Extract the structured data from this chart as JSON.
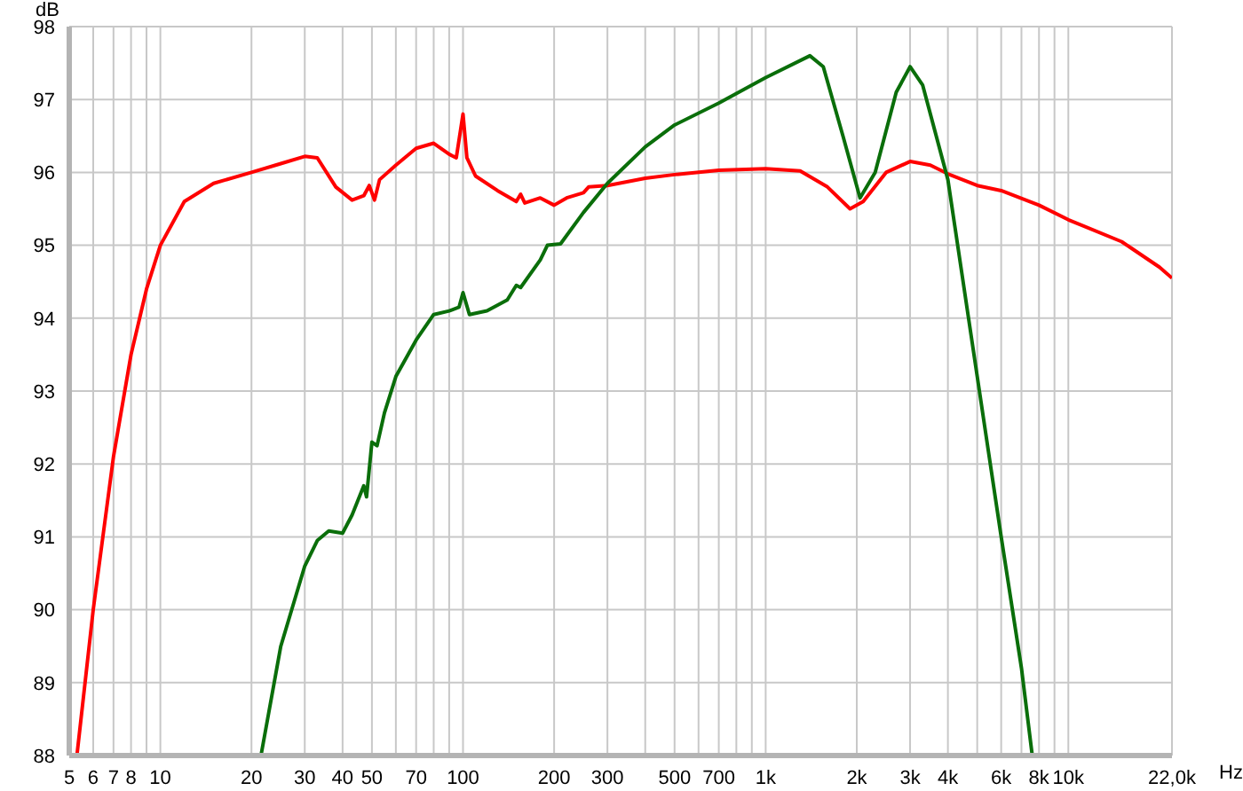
{
  "chart_data": {
    "type": "line",
    "xlabel": "Hz",
    "ylabel": "dB",
    "log": "x",
    "grid": true,
    "marker": "none",
    "xlim": [
      5,
      22000
    ],
    "ylim": [
      88,
      98
    ],
    "xticks": [
      5,
      6,
      7,
      8,
      {
        "value": 9,
        "label": null
      },
      10,
      20,
      30,
      40,
      50,
      {
        "value": 60,
        "label": null
      },
      70,
      {
        "value": 80,
        "label": null
      },
      {
        "value": 90,
        "label": null
      },
      100,
      200,
      300,
      {
        "value": 400,
        "label": null
      },
      500,
      {
        "value": 600,
        "label": null
      },
      700,
      {
        "value": 800,
        "label": null
      },
      {
        "value": 900,
        "label": null
      },
      {
        "value": 1000,
        "label": "1k"
      },
      {
        "value": 2000,
        "label": "2k"
      },
      {
        "value": 3000,
        "label": "3k"
      },
      {
        "value": 4000,
        "label": "4k"
      },
      {
        "value": 5000,
        "label": null
      },
      {
        "value": 6000,
        "label": "6k"
      },
      {
        "value": 7000,
        "label": null
      },
      {
        "value": 8000,
        "label": "8k"
      },
      {
        "value": 9000,
        "label": null
      },
      {
        "value": 10000,
        "label": "10k"
      },
      {
        "value": 22000,
        "label": "22,0k"
      }
    ],
    "yticks": [
      88,
      89,
      90,
      91,
      92,
      93,
      94,
      95,
      96,
      97,
      98
    ],
    "series": [
      {
        "color": "#ff0000",
        "x": [
          5.3,
          6,
          7,
          8,
          9,
          10,
          12,
          15,
          20,
          25,
          30,
          33,
          38,
          43,
          47,
          49,
          51,
          53,
          60,
          70,
          80,
          90,
          95,
          100,
          103,
          110,
          130,
          150,
          155,
          160,
          180,
          200,
          220,
          250,
          260,
          300,
          400,
          500,
          700,
          1000,
          1300,
          1600,
          1900,
          2100,
          2500,
          3000,
          3500,
          4000,
          5000,
          6000,
          8000,
          10000,
          15000,
          20000,
          22000
        ],
        "values": [
          88,
          90,
          92.1,
          93.5,
          94.4,
          95,
          95.6,
          95.85,
          96,
          96.12,
          96.22,
          96.2,
          95.8,
          95.62,
          95.68,
          95.82,
          95.62,
          95.9,
          96.1,
          96.33,
          96.4,
          96.25,
          96.2,
          96.8,
          96.2,
          95.95,
          95.75,
          95.6,
          95.7,
          95.58,
          95.65,
          95.55,
          95.65,
          95.72,
          95.8,
          95.82,
          95.92,
          95.97,
          96.03,
          96.05,
          96.02,
          95.8,
          95.5,
          95.6,
          96,
          96.15,
          96.1,
          95.98,
          95.82,
          95.75,
          95.55,
          95.35,
          95.05,
          94.7,
          94.55
        ]
      },
      {
        "color": "#0a6e0a",
        "x": [
          21.5,
          25,
          30,
          33,
          36,
          40,
          43,
          47,
          48,
          50,
          52,
          55,
          60,
          70,
          80,
          90,
          97,
          100,
          105,
          120,
          140,
          150,
          155,
          180,
          190,
          210,
          250,
          300,
          400,
          500,
          700,
          1000,
          1400,
          1550,
          1800,
          2050,
          2300,
          2700,
          3000,
          3300,
          4000,
          5000,
          6000,
          7000,
          7600
        ],
        "values": [
          88,
          89.5,
          90.6,
          90.95,
          91.08,
          91.05,
          91.3,
          91.7,
          91.55,
          92.3,
          92.25,
          92.7,
          93.2,
          93.7,
          94.05,
          94.1,
          94.15,
          94.35,
          94.05,
          94.1,
          94.25,
          94.45,
          94.42,
          94.8,
          95,
          95.02,
          95.45,
          95.85,
          96.35,
          96.65,
          96.95,
          97.3,
          97.6,
          97.45,
          96.5,
          95.65,
          96,
          97.1,
          97.45,
          97.2,
          95.9,
          93.2,
          91,
          89.2,
          88
        ]
      }
    ]
  }
}
